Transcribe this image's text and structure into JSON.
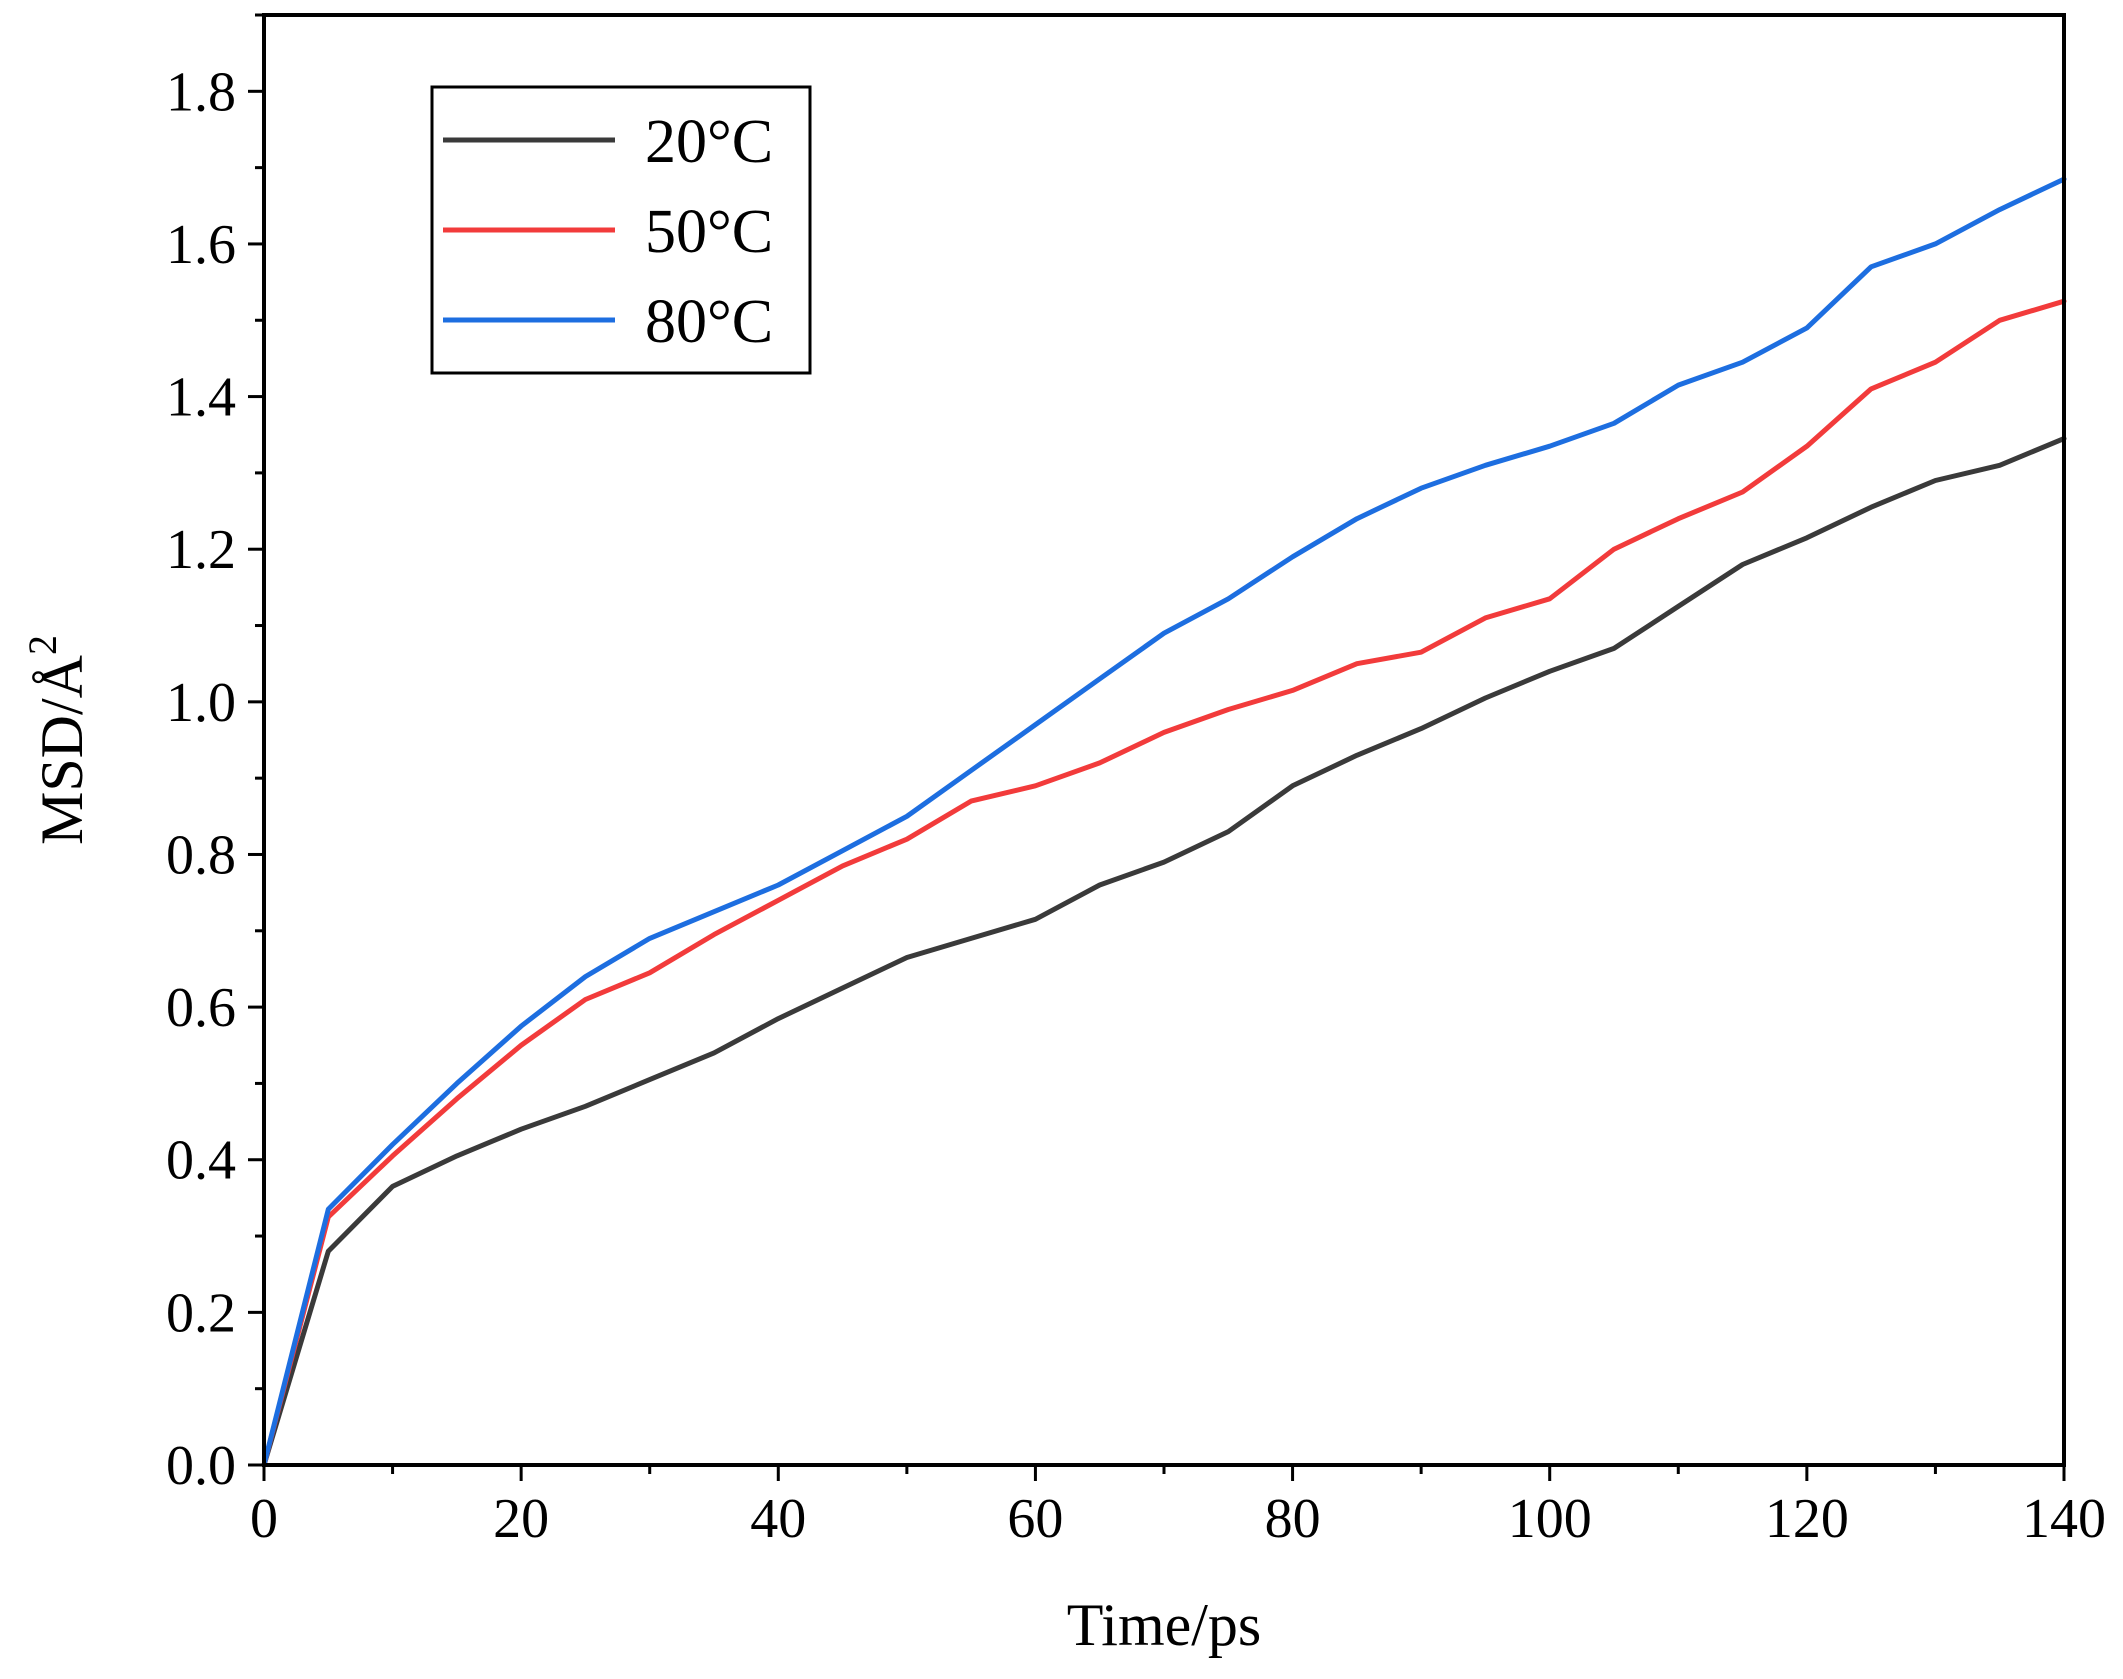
{
  "chart_data": {
    "type": "line",
    "title": "",
    "xlabel": "Time/ps",
    "ylabel_main": "MSD/Å",
    "ylabel_sup": "2",
    "xlim": [
      0,
      140
    ],
    "ylim": [
      0,
      1.9
    ],
    "x_ticks": [
      0,
      20,
      40,
      60,
      80,
      100,
      120,
      140
    ],
    "x_tick_labels": [
      "0",
      "20",
      "40",
      "60",
      "80",
      "100",
      "120",
      "140"
    ],
    "y_ticks": [
      0.0,
      0.2,
      0.4,
      0.6,
      0.8,
      1.0,
      1.2,
      1.4,
      1.6,
      1.8
    ],
    "y_tick_labels": [
      "0.0",
      "0.2",
      "0.4",
      "0.6",
      "0.8",
      "1.0",
      "1.2",
      "1.4",
      "1.6",
      "1.8"
    ],
    "grid": false,
    "legend_position": "top-left",
    "x": [
      0,
      5,
      10,
      15,
      20,
      25,
      30,
      35,
      40,
      45,
      50,
      55,
      60,
      65,
      70,
      75,
      80,
      85,
      90,
      95,
      100,
      105,
      110,
      115,
      120,
      125,
      130,
      135,
      140
    ],
    "series": [
      {
        "name": "20°C",
        "color": "#3a3a3a",
        "values": [
          0.0,
          0.28,
          0.365,
          0.405,
          0.44,
          0.47,
          0.505,
          0.54,
          0.585,
          0.625,
          0.665,
          0.69,
          0.715,
          0.76,
          0.79,
          0.83,
          0.89,
          0.93,
          0.965,
          1.005,
          1.04,
          1.07,
          1.125,
          1.18,
          1.215,
          1.255,
          1.29,
          1.31,
          1.345
        ]
      },
      {
        "name": "50°C",
        "color": "#f23b3b",
        "values": [
          0.0,
          0.325,
          0.405,
          0.48,
          0.55,
          0.61,
          0.645,
          0.695,
          0.74,
          0.785,
          0.82,
          0.87,
          0.89,
          0.92,
          0.96,
          0.99,
          1.015,
          1.05,
          1.065,
          1.11,
          1.135,
          1.2,
          1.24,
          1.275,
          1.335,
          1.41,
          1.445,
          1.5,
          1.525
        ]
      },
      {
        "name": "80°C",
        "color": "#1d6ee0",
        "values": [
          0.0,
          0.335,
          0.42,
          0.5,
          0.575,
          0.64,
          0.69,
          0.725,
          0.76,
          0.805,
          0.85,
          0.91,
          0.97,
          1.03,
          1.09,
          1.135,
          1.19,
          1.24,
          1.28,
          1.31,
          1.335,
          1.365,
          1.415,
          1.445,
          1.49,
          1.57,
          1.6,
          1.645,
          1.685
        ]
      }
    ]
  }
}
